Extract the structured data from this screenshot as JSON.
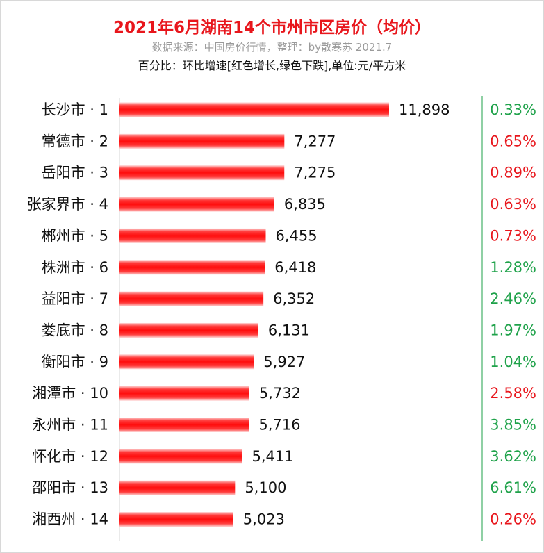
{
  "header": {
    "title": "2021年6月湖南14个市州市区房价（均价）",
    "subtitle": "数据来源：中国房价行情，整理：by散寒苏 2021.7",
    "note": "百分比：环比增速[红色增长,绿色下跌],单位:元/平方米"
  },
  "colors": {
    "bar": "#ff1a1a",
    "pct_up": "#e8161c",
    "pct_down": "#1fa24a",
    "divider": "#1fa24a"
  },
  "chart_data": {
    "type": "bar",
    "orientation": "horizontal",
    "unit": "元/平方米",
    "categories": [
      "长沙市 · 1",
      "常德市 · 2",
      "岳阳市 · 3",
      "张家界市 · 4",
      "郴州市 · 5",
      "株洲市 · 6",
      "益阳市 · 7",
      "娄底市 · 8",
      "衡阳市 · 9",
      "湘潭市 · 10",
      "永州市 · 11",
      "怀化市 · 12",
      "邵阳市 · 13",
      "湘西州 · 14"
    ],
    "values": [
      11898,
      7277,
      7275,
      6835,
      6455,
      6418,
      6352,
      6131,
      5927,
      5732,
      5716,
      5411,
      5100,
      5023
    ],
    "value_labels": [
      "11,898",
      "7,277",
      "7,275",
      "6,835",
      "6,455",
      "6,418",
      "6,352",
      "6,131",
      "5,927",
      "5,732",
      "5,716",
      "5,411",
      "5,100",
      "5,023"
    ],
    "mom_change": [
      "0.33%",
      "0.65%",
      "0.89%",
      "0.63%",
      "0.73%",
      "1.28%",
      "2.46%",
      "1.97%",
      "1.04%",
      "2.58%",
      "3.85%",
      "3.62%",
      "6.61%",
      "0.26%"
    ],
    "mom_color": [
      "green",
      "red",
      "red",
      "red",
      "red",
      "green",
      "green",
      "green",
      "green",
      "red",
      "green",
      "green",
      "green",
      "red"
    ],
    "xlim": [
      0,
      11898
    ],
    "grid": false,
    "legend": "none"
  }
}
